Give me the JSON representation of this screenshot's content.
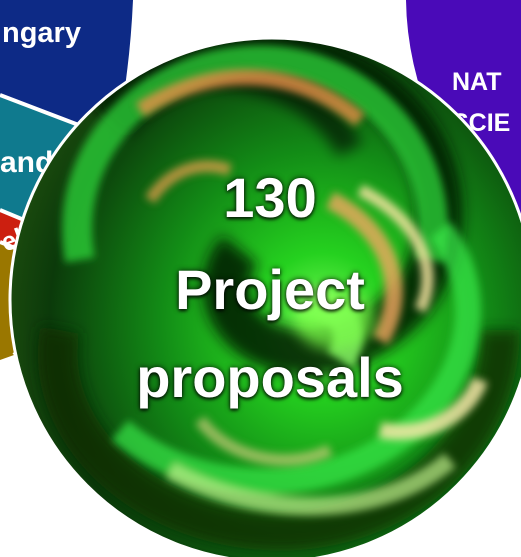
{
  "segments": {
    "hungary": {
      "label": "ngary",
      "color": "#0d2a86"
    },
    "ireland": {
      "label": "and",
      "color": "#0f7a8e"
    },
    "israel": {
      "label": "el",
      "color": "#cc1f10"
    },
    "gold": {
      "color": "#9a7700"
    },
    "natural_sciences": {
      "label_line1": "NAT",
      "label_line2": "SCIE",
      "color": "#4a0ab8"
    }
  },
  "center": {
    "count": "130",
    "line1": "Project",
    "line2": "proposals"
  },
  "colors": {
    "swirl_green": "#1fbf2a",
    "swirl_dark": "#0a1a06",
    "swirl_orange": "#f0a050",
    "swirl_yellow": "#f2e6a0"
  }
}
